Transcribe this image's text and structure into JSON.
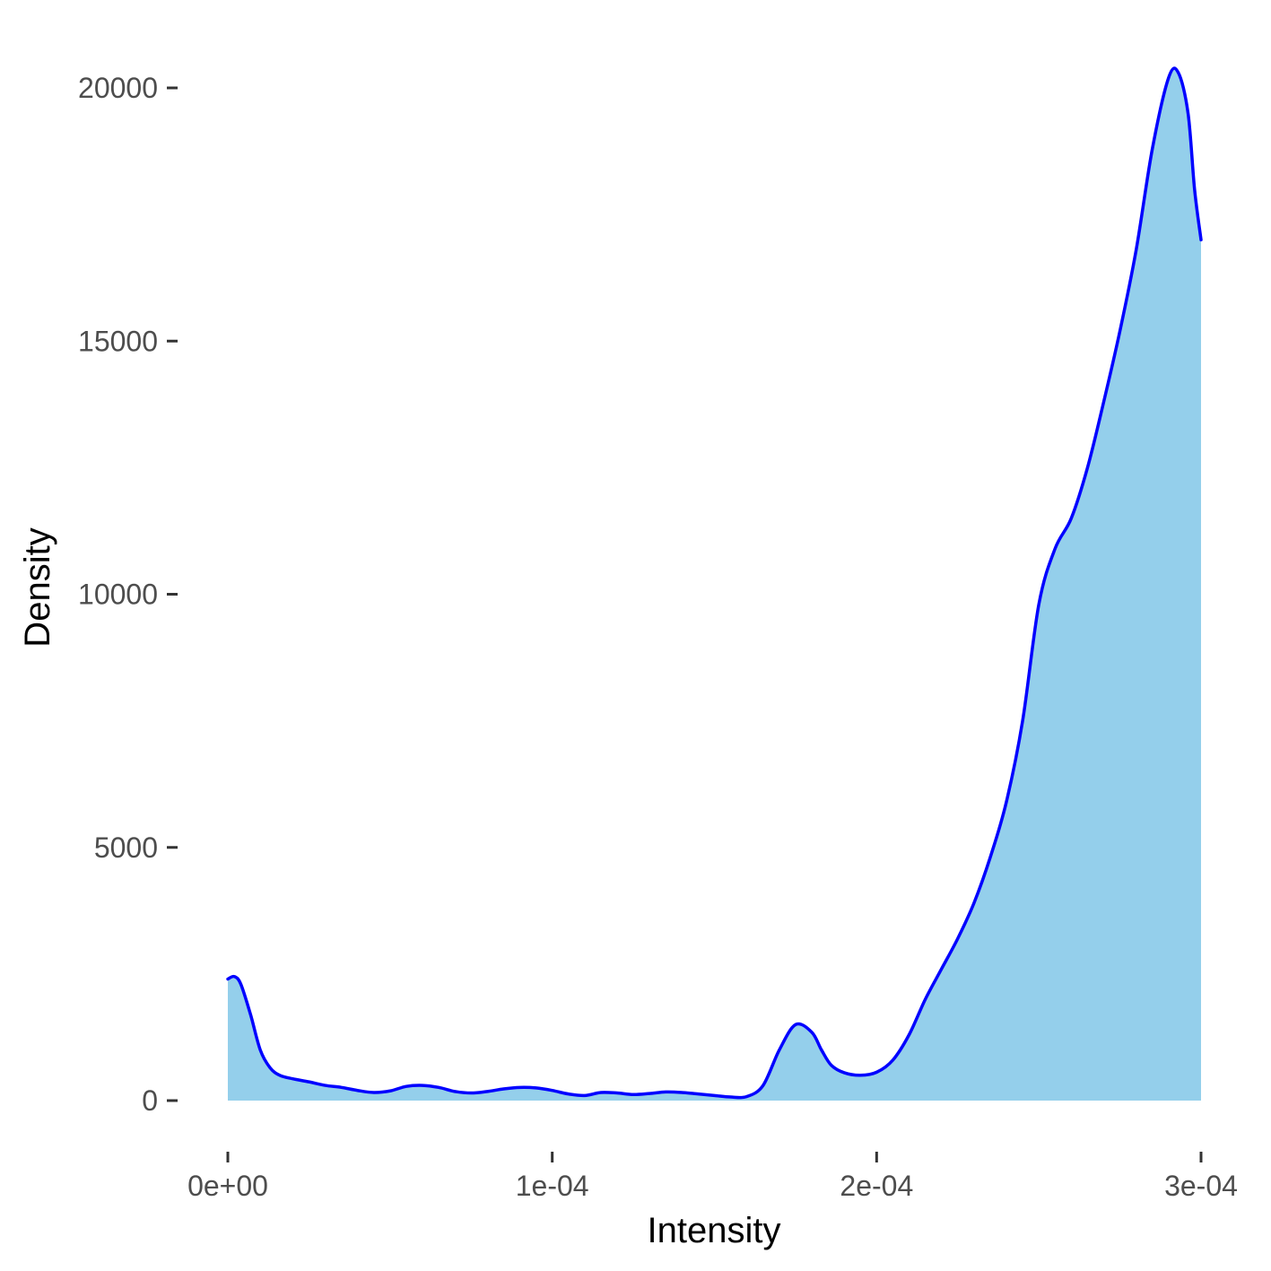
{
  "chart_data": {
    "type": "area",
    "title": "",
    "xlabel": "Intensity",
    "ylabel": "Density",
    "xlim": [
      0,
      0.0003
    ],
    "ylim": [
      0,
      20000
    ],
    "x_ticks": [
      {
        "value": 0,
        "label": "0e+00"
      },
      {
        "value": 0.0001,
        "label": "1e-04"
      },
      {
        "value": 0.0002,
        "label": "2e-04"
      },
      {
        "value": 0.0003,
        "label": "3e-04"
      }
    ],
    "y_ticks": [
      {
        "value": 0,
        "label": "0"
      },
      {
        "value": 5000,
        "label": "5000"
      },
      {
        "value": 10000,
        "label": "10000"
      },
      {
        "value": 15000,
        "label": "15000"
      },
      {
        "value": 20000,
        "label": "20000"
      }
    ],
    "grid": false,
    "legend": "none",
    "fill_color": "#94CFEB",
    "line_color": "#0000FF",
    "series": [
      {
        "x": [
          0,
          2e-06,
          4e-06,
          7e-06,
          1e-05,
          1.3e-05,
          1.6e-05,
          2e-05,
          2.5e-05,
          3e-05,
          3.5e-05,
          4e-05,
          4.5e-05,
          5e-05,
          5.5e-05,
          6e-05,
          6.5e-05,
          7e-05,
          7.5e-05,
          8e-05,
          8.5e-05,
          9e-05,
          9.5e-05,
          0.0001,
          0.000105,
          0.00011,
          0.000115,
          0.00012,
          0.000125,
          0.00013,
          0.000135,
          0.00014,
          0.000145,
          0.00015,
          0.000155,
          0.00016,
          0.000165,
          0.00017,
          0.000175,
          0.00018,
          0.000183,
          0.000186,
          0.00019,
          0.000195,
          0.0002,
          0.000205,
          0.00021,
          0.000215,
          0.00022,
          0.000225,
          0.00023,
          0.000235,
          0.00024,
          0.000245,
          0.00025,
          0.000255,
          0.00026,
          0.000265,
          0.00027,
          0.000275,
          0.00028,
          0.000285,
          0.00029,
          0.000293,
          0.000296,
          0.000298,
          0.0003
        ],
        "y": [
          2400,
          2450,
          2300,
          1700,
          1000,
          650,
          500,
          430,
          370,
          300,
          260,
          200,
          160,
          190,
          280,
          300,
          260,
          180,
          150,
          180,
          230,
          260,
          250,
          200,
          130,
          100,
          160,
          150,
          120,
          140,
          170,
          160,
          130,
          100,
          70,
          80,
          300,
          1000,
          1500,
          1350,
          1000,
          700,
          550,
          500,
          560,
          800,
          1300,
          2000,
          2600,
          3200,
          3900,
          4800,
          5900,
          7500,
          9800,
          10900,
          11500,
          12500,
          13800,
          15200,
          16800,
          18800,
          20200,
          20300,
          19500,
          18000,
          17000
        ]
      }
    ]
  }
}
